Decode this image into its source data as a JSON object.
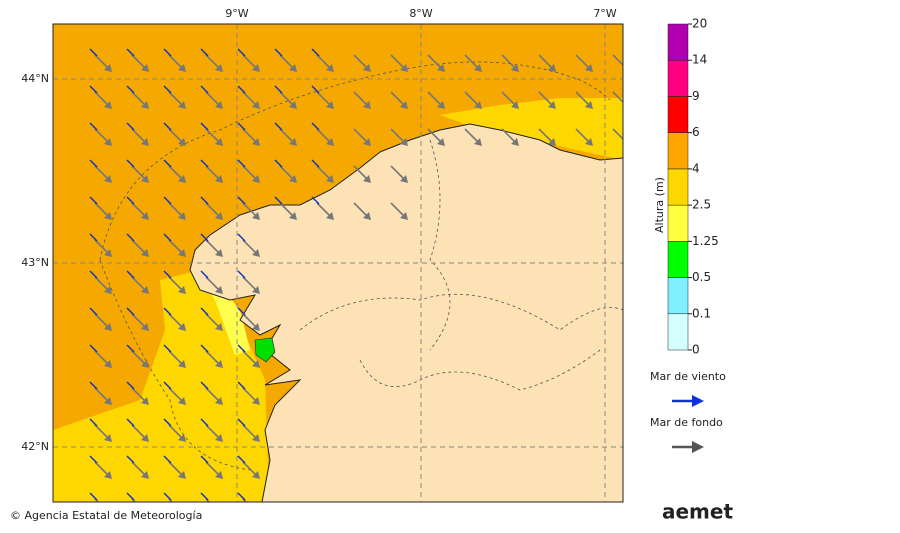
{
  "map": {
    "longitudes": [
      {
        "value": -9,
        "label": "9°W"
      },
      {
        "value": -8,
        "label": "8°W"
      },
      {
        "value": -7,
        "label": "7°W"
      }
    ],
    "latitudes": [
      {
        "value": 44,
        "label": "44°N"
      },
      {
        "value": 43,
        "label": "43°N"
      },
      {
        "value": 42,
        "label": "42°N"
      }
    ]
  },
  "colorbar": {
    "label": "Altura (m)",
    "ticks": [
      0,
      0.1,
      0.5,
      1.25,
      2.5,
      4,
      6,
      9,
      14,
      20
    ],
    "colors": [
      "#d4ffff",
      "#80f0ff",
      "#00ff00",
      "#ffff40",
      "#ffd700",
      "#ffa500",
      "#ff0000",
      "#ff0080",
      "#b000b0"
    ]
  },
  "legend": [
    {
      "label": "Mar de viento",
      "color": "#1030e0"
    },
    {
      "label": "Mar de fondo",
      "color": "#555555"
    }
  ],
  "footer": {
    "credit": "© Agencia Estatal de Meteorología",
    "logo": "aemet"
  }
}
